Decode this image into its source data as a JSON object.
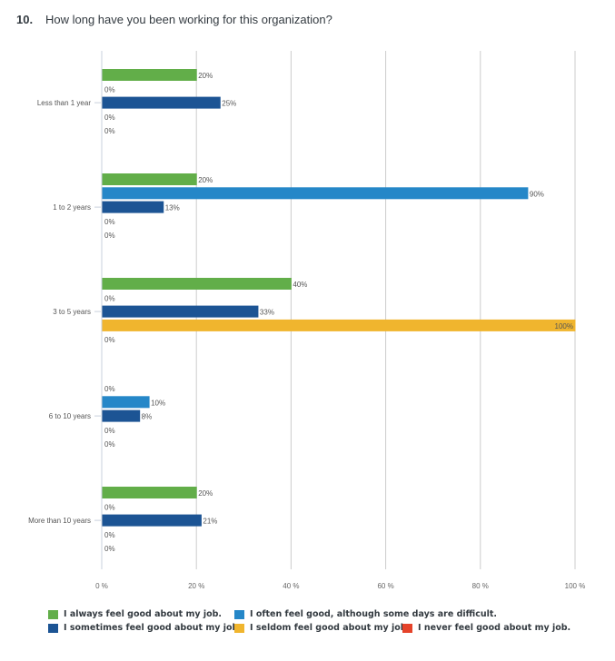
{
  "question": {
    "number": "10.",
    "text": "How long have you been working for this organization?"
  },
  "chart_data": {
    "type": "bar",
    "orientation": "horizontal",
    "title": "How long have you been working for this organization?",
    "xlabel": "",
    "ylabel": "",
    "xlim": [
      0,
      100
    ],
    "grid": true,
    "legend_position": "bottom",
    "x_ticks": [
      "0 %",
      "20 %",
      "40 %",
      "60 %",
      "80 %",
      "100 %"
    ],
    "categories": [
      "Less than 1 year",
      "1 to 2 years",
      "3 to 5 years",
      "6 to 10 years",
      "More than 10 years"
    ],
    "series": [
      {
        "name": "I always feel good about my job.",
        "color": "#62ae49",
        "values": [
          20,
          20,
          40,
          0,
          20
        ]
      },
      {
        "name": "I often feel good, although some days are difficult.",
        "color": "#2587c8",
        "values": [
          0,
          90,
          0,
          10,
          0
        ]
      },
      {
        "name": "I sometimes feel good about my job.",
        "color": "#1c5494",
        "values": [
          25,
          13,
          33,
          8,
          21
        ]
      },
      {
        "name": "I seldom feel good about my job.",
        "color": "#f0b52e",
        "values": [
          0,
          0,
          100,
          0,
          0
        ]
      },
      {
        "name": "I never feel good about my job.",
        "color": "#e5432a",
        "values": [
          0,
          0,
          0,
          0,
          0
        ]
      }
    ]
  }
}
